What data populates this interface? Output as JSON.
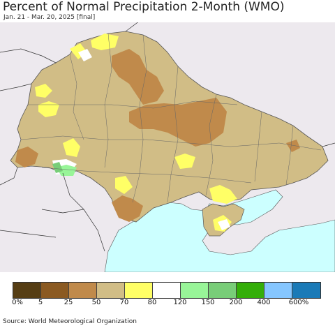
{
  "header": {
    "title": "Percent of Normal Precipitation 2-Month (WMO)",
    "subtitle": "Jan. 21 - Mar. 20, 2025 [final]"
  },
  "legend": {
    "colors": [
      "#563e14",
      "#8b5a22",
      "#c08a4b",
      "#d1bd86",
      "#ffff66",
      "#ffffff",
      "#98f598",
      "#78cd78",
      "#34ae09",
      "#85c6ff",
      "#1a7ab7"
    ],
    "labels": [
      "0%",
      "5",
      "25",
      "50",
      "70",
      "80",
      "120",
      "150",
      "200",
      "400",
      "600%"
    ]
  },
  "colors": {
    "sea": "#ccffff",
    "land_outside": "#ede9ee",
    "base_land": "#d1bd86"
  },
  "footer": {
    "source": "Source: World Meteorological Organization"
  }
}
